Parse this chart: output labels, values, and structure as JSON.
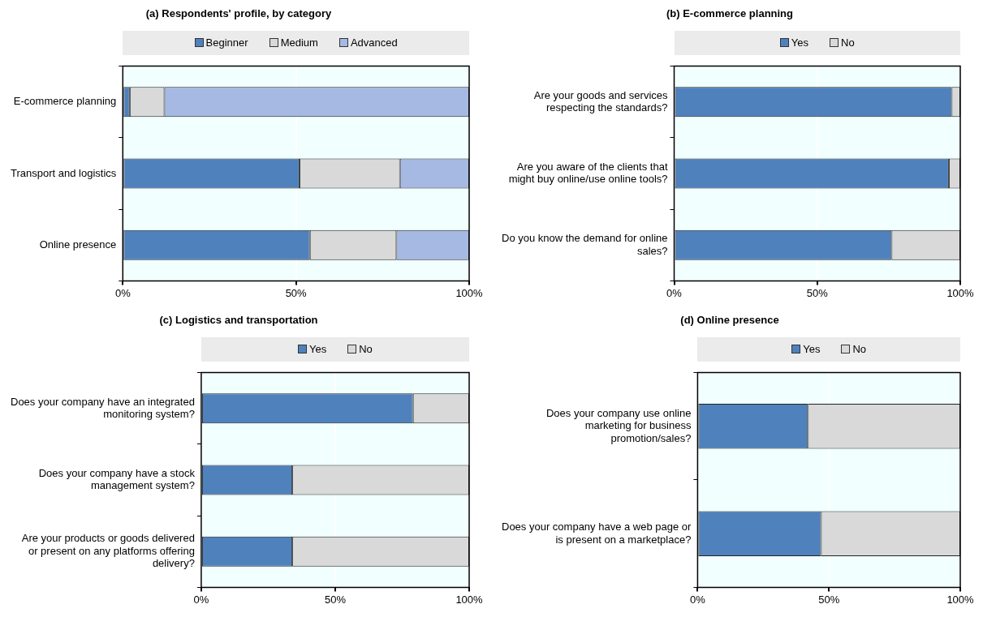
{
  "chart_data": [
    {
      "type": "bar",
      "orientation": "horizontal",
      "stacked": true,
      "title": "(a) Respondents' profile, by category",
      "categories": [
        "E-commerce planning",
        "Transport and logistics",
        "Online presence"
      ],
      "series": [
        {
          "name": "Beginner",
          "color": "#4f81bd",
          "values": [
            2,
            51,
            54
          ]
        },
        {
          "name": "Medium",
          "color": "#d9d9d9",
          "values": [
            10,
            29,
            25
          ]
        },
        {
          "name": "Advanced",
          "color": "#a6b9e3",
          "values": [
            88,
            20,
            21
          ]
        }
      ],
      "xlim": [
        0,
        100
      ],
      "xticks": [
        {
          "value": 0,
          "label": "0%"
        },
        {
          "value": 50,
          "label": "50%"
        },
        {
          "value": 100,
          "label": "100%"
        }
      ],
      "grid": "x",
      "legend": "top"
    },
    {
      "type": "bar",
      "orientation": "horizontal",
      "stacked": true,
      "title": "(b) E-commerce planning",
      "categories": [
        "Are your goods and services respecting the standards?",
        "Are you aware of the clients that might buy online/use online tools?",
        "Do you know the demand for online sales?"
      ],
      "series": [
        {
          "name": "Yes",
          "color": "#4f81bd",
          "values": [
            97,
            96,
            76
          ]
        },
        {
          "name": "No",
          "color": "#d9d9d9",
          "values": [
            3,
            4,
            24
          ]
        }
      ],
      "xlim": [
        0,
        100
      ],
      "xticks": [
        {
          "value": 0,
          "label": "0%"
        },
        {
          "value": 50,
          "label": "50%"
        },
        {
          "value": 100,
          "label": "100%"
        }
      ],
      "grid": "x",
      "legend": "top"
    },
    {
      "type": "bar",
      "orientation": "horizontal",
      "stacked": true,
      "title": "(c) Logistics and transportation",
      "categories": [
        "Does your company have an integrated monitoring system?",
        "Does your company have a stock management system?",
        "Are your products or goods delivered or present on any platforms offering delivery?"
      ],
      "series": [
        {
          "name": "Yes",
          "color": "#4f81bd",
          "values": [
            79,
            34,
            34
          ]
        },
        {
          "name": "No",
          "color": "#d9d9d9",
          "values": [
            21,
            66,
            66
          ]
        }
      ],
      "xlim": [
        0,
        100
      ],
      "xticks": [
        {
          "value": 0,
          "label": "0%"
        },
        {
          "value": 50,
          "label": "50%"
        },
        {
          "value": 100,
          "label": "100%"
        }
      ],
      "grid": "x",
      "legend": "top"
    },
    {
      "type": "bar",
      "orientation": "horizontal",
      "stacked": true,
      "title": "(d) Online presence",
      "categories": [
        "Does your company use online marketing for business promotion/sales?",
        "Does your company have a web page or is present on a marketplace?"
      ],
      "series": [
        {
          "name": "Yes",
          "color": "#4f81bd",
          "values": [
            42,
            47
          ]
        },
        {
          "name": "No",
          "color": "#d9d9d9",
          "values": [
            58,
            53
          ]
        }
      ],
      "xlim": [
        0,
        100
      ],
      "xticks": [
        {
          "value": 0,
          "label": "0%"
        },
        {
          "value": 50,
          "label": "50%"
        },
        {
          "value": 100,
          "label": "100%"
        }
      ],
      "grid": "x",
      "legend": "top"
    }
  ]
}
